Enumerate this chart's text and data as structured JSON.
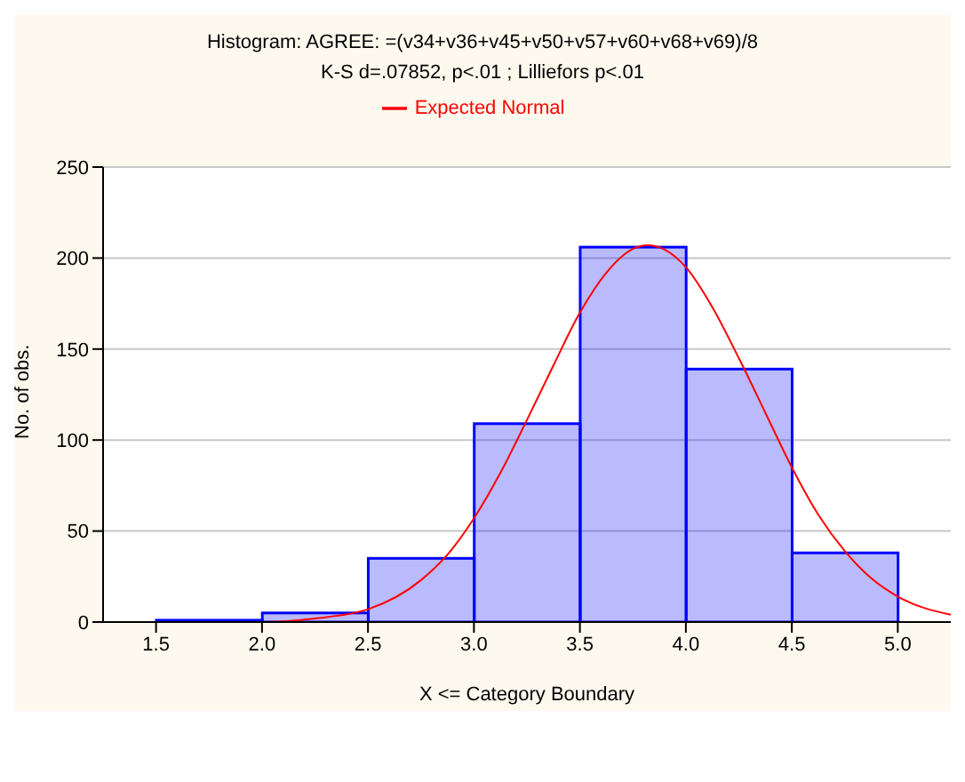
{
  "chart_data": {
    "type": "histogram",
    "title": "Histogram: AGREE: =(v34+v36+v45+v50+v57+v60+v68+v69)/8",
    "subtitle": "K-S d=.07852, p<.01 ; Lilliefors p<.01",
    "xlabel": "X <= Category Boundary",
    "ylabel": "No. of obs.",
    "bins": [
      1.5,
      2,
      2.5,
      3,
      3.5,
      4,
      4.5,
      5
    ],
    "series": [
      {
        "color": "#0000ff",
        "values": [
          1,
          5,
          35,
          109,
          206,
          139,
          38
        ]
      },
      {
        "type": "line",
        "name": "Expected Normal",
        "color": "#ff0000",
        "x": [
          1.25,
          1.5,
          2.0,
          2.25,
          2.5,
          2.75,
          2.875,
          3.0,
          3.125,
          3.25,
          3.375,
          3.5,
          3.625,
          3.75,
          3.82,
          4.0,
          4.125,
          4.25,
          4.375,
          4.5,
          4.625,
          4.75,
          4.875,
          5.0,
          5.25
        ],
        "values": [
          0,
          0,
          0,
          2,
          7,
          23,
          37,
          57,
          82,
          111,
          141,
          170,
          192,
          205,
          207,
          195,
          173,
          145,
          115,
          85,
          59,
          39,
          24,
          14,
          4
        ]
      }
    ],
    "xlim": [
      1.25,
      5.25
    ],
    "xticks": [
      1.5,
      {
        "value": 2,
        "label": "2.0"
      },
      2.5,
      {
        "value": 3,
        "label": "3.0"
      },
      3.5,
      {
        "value": 4,
        "label": "4.0"
      },
      4.5,
      {
        "value": 5,
        "label": "5.0"
      }
    ],
    "ylim": [
      0,
      250
    ],
    "yticks": [
      0,
      50,
      100,
      150,
      200,
      250
    ],
    "grid": "y",
    "legend": "top"
  }
}
